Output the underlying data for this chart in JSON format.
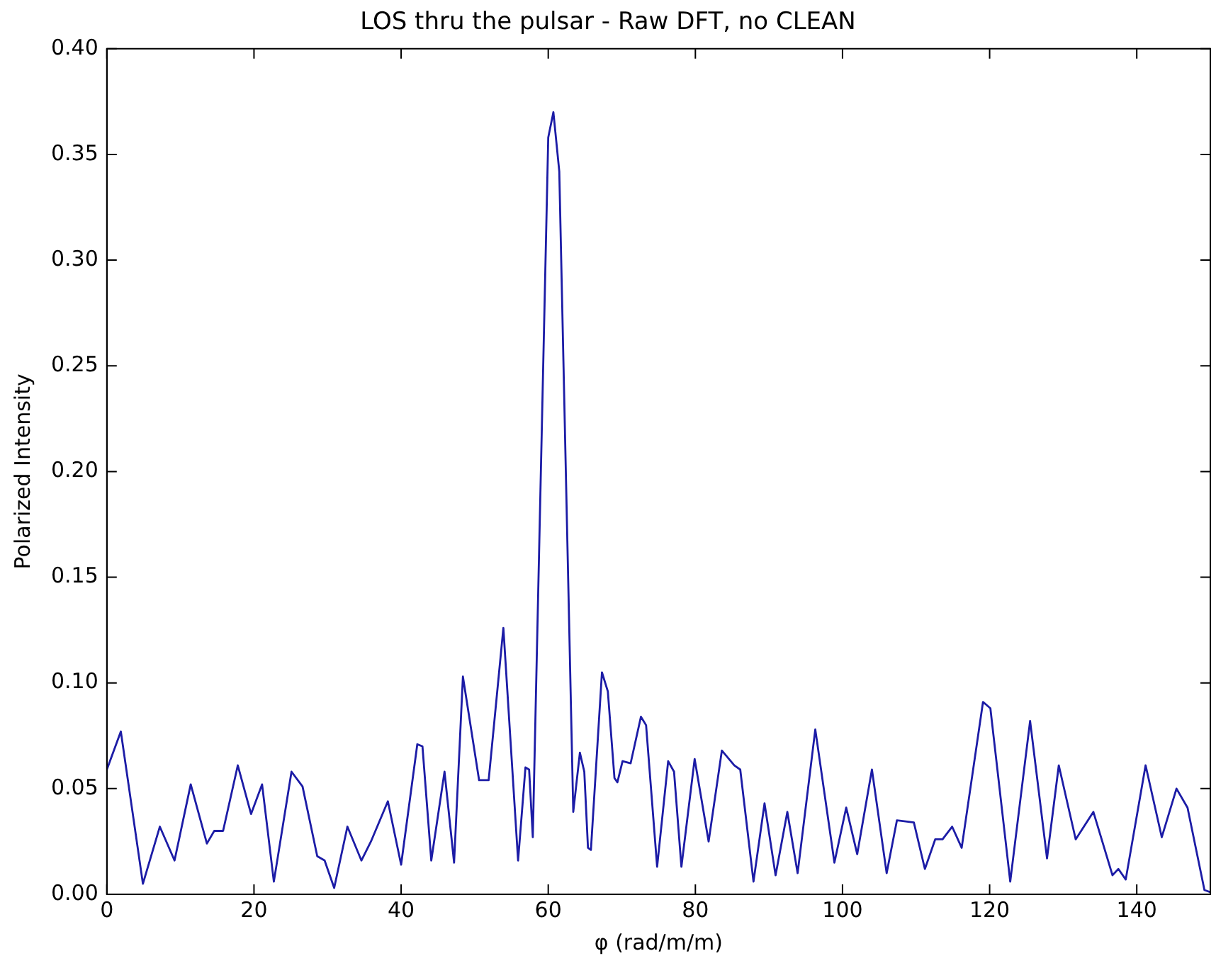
{
  "chart_data": {
    "type": "line",
    "title": "LOS thru the pulsar - Raw DFT, no CLEAN",
    "xlabel": "φ (rad/m/m)",
    "ylabel": "Polarized Intensity",
    "xlim": [
      0,
      150
    ],
    "xticks": [
      0,
      20,
      40,
      60,
      80,
      100,
      120,
      140
    ],
    "ylim": [
      0,
      0.4
    ],
    "yticks": [
      {
        "value": 0,
        "label": "0.00"
      },
      {
        "value": 0.05,
        "label": "0.05"
      },
      {
        "value": 0.1,
        "label": "0.10"
      },
      {
        "value": 0.15,
        "label": "0.15"
      },
      {
        "value": 0.2,
        "label": "0.20"
      },
      {
        "value": 0.25,
        "label": "0.25"
      },
      {
        "value": 0.3,
        "label": "0.30"
      },
      {
        "value": 0.35,
        "label": "0.35"
      },
      {
        "value": 0.4,
        "label": "0.40"
      }
    ],
    "grid": false,
    "legend": false,
    "marker": "none",
    "line_style": "solid",
    "series": [
      {
        "color": "#1c1ca6",
        "x": [
          0,
          1.9,
          4.9,
          7.2,
          9.2,
          11.4,
          13.6,
          14.6,
          15.8,
          17.8,
          19.6,
          21.1,
          22.7,
          25.1,
          26.6,
          28.6,
          29.6,
          30.9,
          32.7,
          34.6,
          35.9,
          38.2,
          40,
          42.2,
          42.9,
          44.1,
          45.9,
          47.2,
          48.4,
          50.6,
          51.9,
          53.9,
          55.9,
          56.9,
          57.4,
          57.9,
          60,
          60.7,
          61.5,
          63.4,
          64.3,
          64.9,
          65.4,
          65.8,
          67.3,
          68.1,
          69,
          69.4,
          70.1,
          71.2,
          72.6,
          73.3,
          74.8,
          76.3,
          77.1,
          78.1,
          79.9,
          81.8,
          83.6,
          85.3,
          86.1,
          87.9,
          89.4,
          90.9,
          92.5,
          93.9,
          96.3,
          98.9,
          100.5,
          102,
          104,
          106,
          107.4,
          109.7,
          111.2,
          112.6,
          113.6,
          114.9,
          116.2,
          119.1,
          120.1,
          122.8,
          125.5,
          127.8,
          129.4,
          131.7,
          134.1,
          136.7,
          137.5,
          138.5,
          141.2,
          143.4,
          145.4,
          146.9,
          149.2,
          150
        ],
        "values": [
          0.059,
          0.077,
          0.005,
          0.032,
          0.016,
          0.052,
          0.024,
          0.03,
          0.03,
          0.061,
          0.038,
          0.052,
          0.006,
          0.058,
          0.051,
          0.018,
          0.016,
          0.003,
          0.032,
          0.016,
          0.025,
          0.044,
          0.014,
          0.071,
          0.07,
          0.016,
          0.058,
          0.015,
          0.103,
          0.054,
          0.054,
          0.126,
          0.016,
          0.06,
          0.059,
          0.027,
          0.358,
          0.37,
          0.342,
          0.039,
          0.067,
          0.058,
          0.022,
          0.021,
          0.105,
          0.096,
          0.055,
          0.053,
          0.063,
          0.062,
          0.084,
          0.08,
          0.013,
          0.063,
          0.058,
          0.013,
          0.064,
          0.025,
          0.068,
          0.061,
          0.059,
          0.006,
          0.043,
          0.009,
          0.039,
          0.01,
          0.078,
          0.015,
          0.041,
          0.019,
          0.059,
          0.01,
          0.035,
          0.034,
          0.012,
          0.026,
          0.026,
          0.032,
          0.022,
          0.091,
          0.088,
          0.006,
          0.082,
          0.017,
          0.061,
          0.026,
          0.039,
          0.009,
          0.012,
          0.007,
          0.061,
          0.027,
          0.05,
          0.041,
          0.002,
          0.001
        ]
      }
    ]
  }
}
